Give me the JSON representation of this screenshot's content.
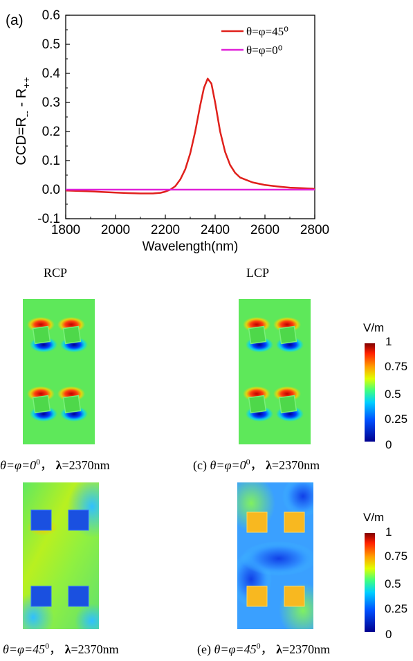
{
  "chart_data": {
    "type": "line",
    "panel_label": "(a)",
    "xlabel": "Wavelength(nm)",
    "ylabel_parts": {
      "main": "CCD=R",
      "sub1": "--",
      "mid": " - R",
      "sub2": "++"
    },
    "xlim": [
      1800,
      2800
    ],
    "ylim": [
      -0.1,
      0.6
    ],
    "xticks": [
      1800,
      2000,
      2200,
      2400,
      2600,
      2800
    ],
    "yticks": [
      -0.1,
      0.0,
      0.1,
      0.2,
      0.3,
      0.4,
      0.5,
      0.6
    ],
    "legend_position": "top-right",
    "series": [
      {
        "name": "θ=φ=45⁰",
        "color": "#e0201b",
        "x": [
          1800,
          1900,
          2000,
          2050,
          2100,
          2150,
          2180,
          2200,
          2220,
          2240,
          2260,
          2280,
          2300,
          2320,
          2340,
          2355,
          2370,
          2385,
          2400,
          2420,
          2440,
          2460,
          2480,
          2500,
          2550,
          2600,
          2650,
          2700,
          2750,
          2800
        ],
        "y": [
          -0.003,
          -0.006,
          -0.01,
          -0.012,
          -0.013,
          -0.013,
          -0.011,
          -0.007,
          0.0,
          0.012,
          0.035,
          0.07,
          0.125,
          0.2,
          0.29,
          0.35,
          0.382,
          0.365,
          0.3,
          0.2,
          0.13,
          0.085,
          0.058,
          0.042,
          0.025,
          0.016,
          0.011,
          0.007,
          0.005,
          0.003
        ]
      },
      {
        "name": "θ=φ=0⁰",
        "color": "#e020d8",
        "x": [
          1800,
          2800
        ],
        "y": [
          0.0,
          0.0
        ]
      }
    ]
  },
  "field_maps": {
    "headers": {
      "rcp": "RCP",
      "lcp": "LCP"
    },
    "captions": [
      {
        "var": "θ=φ=0",
        "sup": "0",
        "sep": "，",
        "lambda": "λ",
        "value": "=2370nm"
      },
      {
        "prefix": "(c) ",
        "var": "θ=φ=0",
        "sup": "0",
        "sep": "，",
        "lambda": "λ",
        "value": "=2370nm"
      },
      {
        "var": "θ=φ=45",
        "sup": "0",
        "sep": "，",
        "lambda": "λ",
        "value": "=2370nm"
      },
      {
        "prefix": "(e) ",
        "var": "θ=φ=45",
        "sup": "0",
        "sep": "，",
        "lambda": "λ",
        "value": "=2370nm"
      }
    ],
    "colorbar": {
      "title": "V/m",
      "ticks": [
        "1",
        "0.75",
        "0.5",
        "0.25",
        "0"
      ],
      "colors": [
        "#00008f",
        "#0050ff",
        "#00d0ff",
        "#40ff80",
        "#e0ff00",
        "#ffa000",
        "#ff2000",
        "#800000"
      ]
    }
  }
}
